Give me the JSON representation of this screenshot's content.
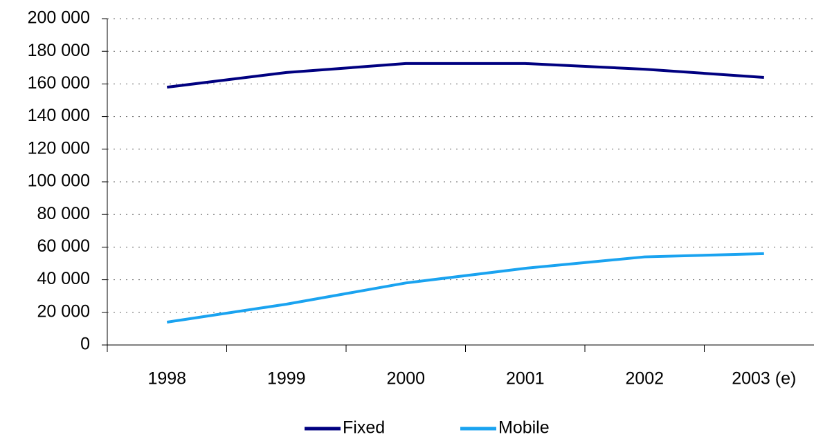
{
  "chart_data": {
    "type": "line",
    "categories": [
      "1998",
      "1999",
      "2000",
      "2001",
      "2002",
      "2003 (e)"
    ],
    "series": [
      {
        "name": "Fixed",
        "color": "#000080",
        "values": [
          158000,
          167000,
          172500,
          172500,
          169000,
          164000
        ]
      },
      {
        "name": "Mobile",
        "color": "#1aa3f0",
        "values": [
          14000,
          25000,
          38000,
          47000,
          54000,
          56000
        ]
      }
    ],
    "ylim": [
      0,
      200000
    ],
    "yticks": [
      0,
      {
        "value": 20000,
        "label": "20 000"
      },
      {
        "value": 40000,
        "label": "40 000"
      },
      {
        "value": 60000,
        "label": "60 000"
      },
      {
        "value": 80000,
        "label": "80 000"
      },
      {
        "value": 100000,
        "label": "100 000"
      },
      {
        "value": 120000,
        "label": "120 000"
      },
      {
        "value": 140000,
        "label": "140 000"
      },
      {
        "value": 160000,
        "label": "160 000"
      },
      {
        "value": 180000,
        "label": "180 000"
      },
      {
        "value": 200000,
        "label": "200 000"
      }
    ],
    "grid": true,
    "legend": "bottom"
  }
}
